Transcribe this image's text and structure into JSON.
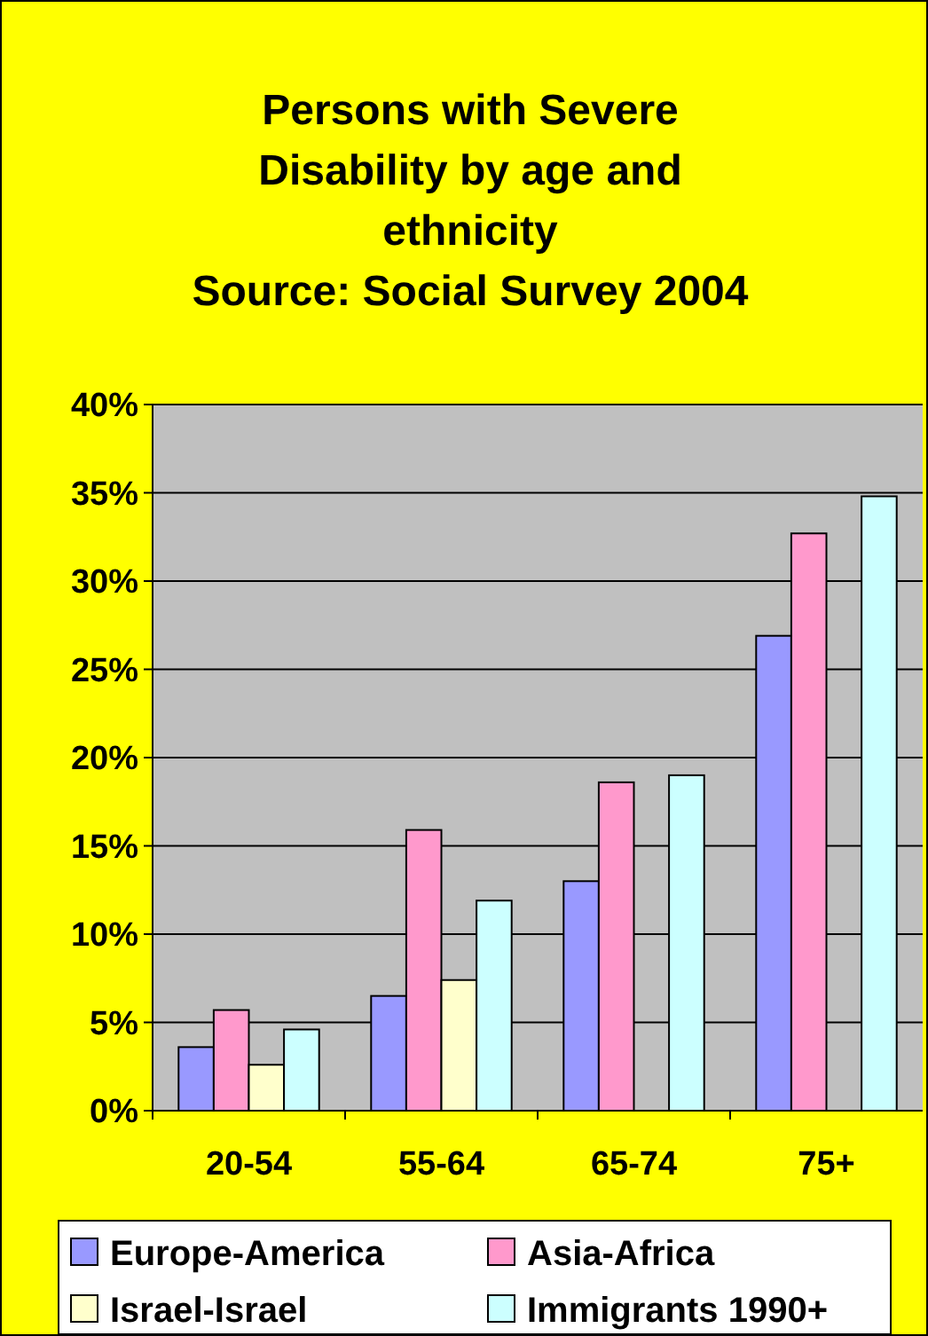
{
  "chart_data": {
    "type": "bar",
    "title": "Persons with Severe\nDisability by age and\nethnicity",
    "annotations": [
      "Source: Social Survey 2004"
    ],
    "categories": [
      "20-54",
      "55-64",
      "65-74",
      "75+"
    ],
    "series": [
      {
        "name": "Europe-America",
        "color": "#9999ff",
        "values": [
          3.6,
          6.5,
          13.0,
          26.9
        ]
      },
      {
        "name": "Asia-Africa",
        "color": "#ff99cc",
        "values": [
          5.7,
          15.9,
          18.6,
          32.7
        ]
      },
      {
        "name": "Israel-Israel",
        "color": "#ffffcc",
        "values": [
          2.6,
          7.4,
          null,
          null
        ]
      },
      {
        "name": "Immigrants 1990+",
        "color": "#ccffff",
        "values": [
          4.6,
          11.9,
          19.0,
          34.8
        ]
      }
    ],
    "ylim": [
      0,
      40
    ],
    "yticks": [
      {
        "value": 0,
        "label": "0%"
      },
      {
        "value": 5,
        "label": "5%"
      },
      {
        "value": 10,
        "label": "10%"
      },
      {
        "value": 15,
        "label": "15%"
      },
      {
        "value": 20,
        "label": "20%"
      },
      {
        "value": 25,
        "label": "25%"
      },
      {
        "value": 30,
        "label": "30%"
      },
      {
        "value": 35,
        "label": "35%"
      },
      {
        "value": 40,
        "label": "40%"
      }
    ],
    "grid": "y",
    "legend": "bottom"
  }
}
